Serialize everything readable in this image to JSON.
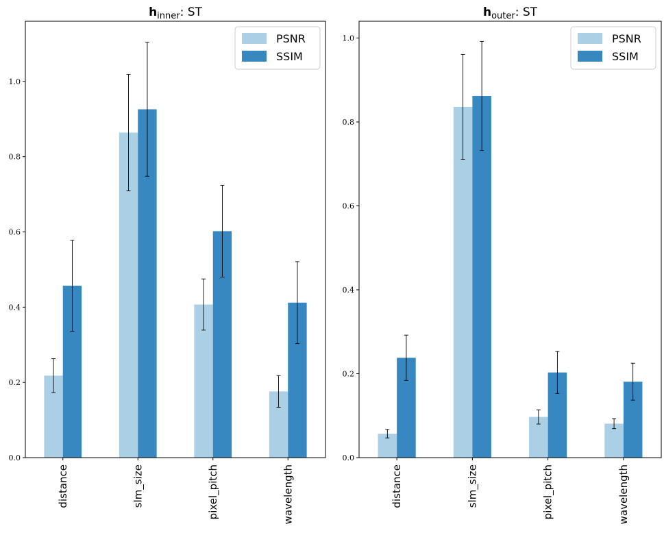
{
  "chart_data": [
    {
      "type": "bar",
      "title_main": "h",
      "title_sub": "inner",
      "title_rest": ": ST",
      "categories": [
        "distance",
        "slm_size",
        "pixel_pitch",
        "wavelength"
      ],
      "ylim": [
        0,
        1.16
      ],
      "yticks": [
        "0.0",
        "0.2",
        "0.4",
        "0.6",
        "0.8",
        "1.0"
      ],
      "series": [
        {
          "name": "PSNR",
          "color": "#abd0e6",
          "values": [
            0.218,
            0.864,
            0.407,
            0.176
          ],
          "errors": [
            0.045,
            0.155,
            0.068,
            0.042
          ]
        },
        {
          "name": "SSIM",
          "color": "#3787c0",
          "values": [
            0.457,
            0.926,
            0.602,
            0.412
          ],
          "errors": [
            0.121,
            0.178,
            0.122,
            0.109
          ]
        }
      ],
      "legend_position": "top-right"
    },
    {
      "type": "bar",
      "title_main": "h",
      "title_sub": "outer",
      "title_rest": ": ST",
      "categories": [
        "distance",
        "slm_size",
        "pixel_pitch",
        "wavelength"
      ],
      "ylim": [
        0,
        1.04
      ],
      "yticks": [
        "0.0",
        "0.2",
        "0.4",
        "0.6",
        "0.8",
        "1.0"
      ],
      "series": [
        {
          "name": "PSNR",
          "color": "#abd0e6",
          "values": [
            0.057,
            0.836,
            0.097,
            0.081
          ],
          "errors": [
            0.01,
            0.125,
            0.017,
            0.012
          ]
        },
        {
          "name": "SSIM",
          "color": "#3787c0",
          "values": [
            0.238,
            0.862,
            0.203,
            0.181
          ],
          "errors": [
            0.054,
            0.13,
            0.05,
            0.044
          ]
        }
      ],
      "legend_position": "top-right"
    }
  ]
}
